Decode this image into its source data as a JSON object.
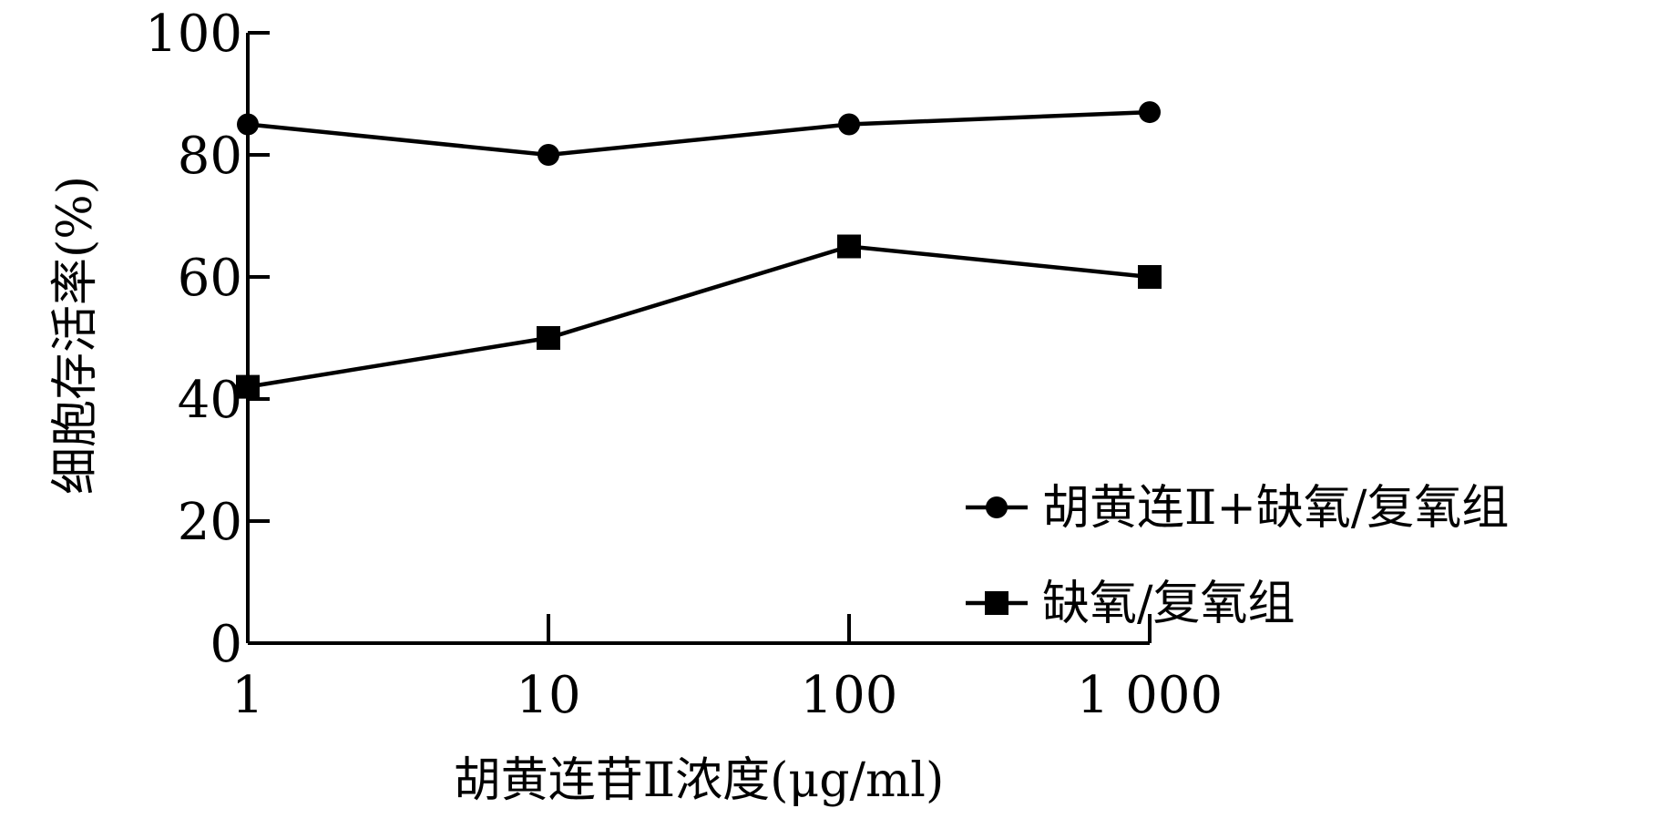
{
  "chart_data": {
    "type": "line",
    "x_scale": "log",
    "x": [
      1,
      10,
      100,
      1000
    ],
    "x_tick_labels": [
      "1",
      "10",
      "100",
      "1 000"
    ],
    "xlabel": "胡黄连苷Ⅱ浓度(μg/ml)",
    "ylabel": "细胞存活率(%)",
    "ylim": [
      0,
      100
    ],
    "y_ticks": [
      0,
      20,
      40,
      60,
      80,
      100
    ],
    "y_tick_labels": [
      "0",
      "20",
      "40",
      "60",
      "80",
      "100"
    ],
    "grid": false,
    "legend_position": "right",
    "series": [
      {
        "name": "胡黄连Ⅱ+缺氧/复氧组",
        "marker": "circle",
        "values": [
          85,
          80,
          85,
          87
        ]
      },
      {
        "name": "缺氧/复氧组",
        "marker": "square",
        "values": [
          42,
          50,
          65,
          60
        ]
      }
    ]
  }
}
